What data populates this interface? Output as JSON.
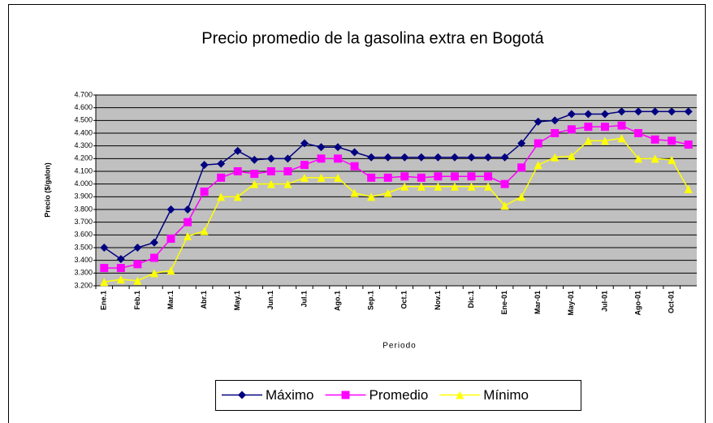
{
  "chart_data": {
    "type": "line",
    "title": "Precio promedio de la gasolina extra en Bogotá",
    "y_label": "Precio ($/galon)",
    "x_label": "Periodo",
    "categories": [
      "Ene.1",
      null,
      "Feb.1",
      null,
      "Mar.1",
      null,
      "Abr.1",
      null,
      "May.1",
      null,
      "Jun.1",
      null,
      "Jul.1",
      null,
      "Ago.1",
      null,
      "Sep.1",
      null,
      "Oct.1",
      null,
      "Nov.1",
      null,
      "Dic.1",
      null,
      "Ene-01",
      null,
      "Mar-01",
      null,
      "May-01",
      null,
      "Jul-01",
      null,
      "Ago-01",
      null,
      "Oct-01",
      null
    ],
    "series": [
      {
        "name": "Máximo",
        "color": "#000080",
        "marker": "diamond",
        "values": [
          3.5,
          3.41,
          3.5,
          3.54,
          3.8,
          3.8,
          4.15,
          4.16,
          4.26,
          4.19,
          4.2,
          4.2,
          4.32,
          4.29,
          4.29,
          4.25,
          4.21,
          4.21,
          4.21,
          4.21,
          4.21,
          4.21,
          4.21,
          4.21,
          4.21,
          4.32,
          4.49,
          4.5,
          4.55,
          4.55,
          4.55,
          4.57,
          4.57,
          4.57,
          4.57,
          4.57
        ]
      },
      {
        "name": "Promedio",
        "color": "#ff00ff",
        "marker": "square",
        "values": [
          3.34,
          3.34,
          3.37,
          3.42,
          3.57,
          3.7,
          3.94,
          4.05,
          4.1,
          4.08,
          4.1,
          4.1,
          4.15,
          4.2,
          4.2,
          4.14,
          4.05,
          4.05,
          4.06,
          4.05,
          4.06,
          4.06,
          4.06,
          4.06,
          4.0,
          4.13,
          4.32,
          4.4,
          4.43,
          4.45,
          4.45,
          4.46,
          4.4,
          4.35,
          4.34,
          4.31
        ]
      },
      {
        "name": "Mínimo",
        "color": "#ffff00",
        "marker": "triangle",
        "values": [
          3.23,
          3.25,
          3.24,
          3.3,
          3.32,
          3.59,
          3.63,
          3.9,
          3.9,
          4.0,
          4.0,
          4.0,
          4.05,
          4.05,
          4.05,
          3.93,
          3.9,
          3.93,
          3.98,
          3.98,
          3.98,
          3.98,
          3.98,
          3.98,
          3.83,
          3.9,
          4.15,
          4.21,
          4.22,
          4.34,
          4.34,
          4.36,
          4.2,
          4.2,
          4.19,
          3.96
        ]
      }
    ],
    "ylim": [
      3.2,
      4.7
    ],
    "yticks": [
      {
        "value": 3.2,
        "label": "3.200"
      },
      {
        "value": 3.3,
        "label": "3.300"
      },
      {
        "value": 3.4,
        "label": "3.400"
      },
      {
        "value": 3.5,
        "label": "3.500"
      },
      {
        "value": 3.6,
        "label": "3.600"
      },
      {
        "value": 3.7,
        "label": "3.700"
      },
      {
        "value": 3.8,
        "label": "3.800"
      },
      {
        "value": 3.9,
        "label": "3.900"
      },
      {
        "value": 4.0,
        "label": "4.000"
      },
      {
        "value": 4.1,
        "label": "4.100"
      },
      {
        "value": 4.2,
        "label": "4.200"
      },
      {
        "value": 4.3,
        "label": "4.300"
      },
      {
        "value": 4.4,
        "label": "4.400"
      },
      {
        "value": 4.5,
        "label": "4.500"
      },
      {
        "value": 4.6,
        "label": "4.600"
      },
      {
        "value": 4.7,
        "label": "4.700"
      }
    ],
    "grid": true,
    "legend": "bottom",
    "plot_background": "#c0c0c0"
  }
}
